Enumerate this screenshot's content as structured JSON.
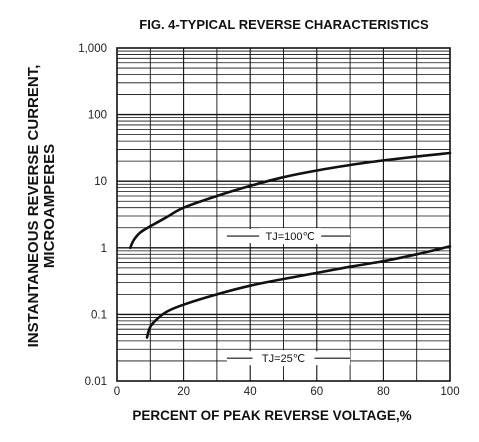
{
  "chart_data": {
    "type": "line",
    "title": "FIG. 4-TYPICAL REVERSE CHARACTERISTICS",
    "xlabel": "PERCENT OF PEAK REVERSE VOLTAGE,%",
    "ylabel": [
      "INSTANTANEOUS REVERSE CURRENT,",
      "MICROAMPERES"
    ],
    "xlim": [
      0,
      100
    ],
    "ylim": [
      0.01,
      1000
    ],
    "yscale": "log",
    "grid": true,
    "x_ticks": [
      0,
      20,
      40,
      60,
      80,
      100
    ],
    "x_tick_labels": [
      "0",
      "20",
      "40",
      "60",
      "80",
      "100"
    ],
    "y_ticks": [
      0.01,
      0.1,
      1,
      10,
      100,
      1000
    ],
    "y_tick_labels": [
      "0.01",
      "0.1",
      "1",
      "10",
      "100",
      "1,000"
    ],
    "series": [
      {
        "name": "TJ=100℃",
        "points": [
          [
            4,
            1.0
          ],
          [
            5,
            1.3
          ],
          [
            7,
            1.7
          ],
          [
            10,
            2.1
          ],
          [
            15,
            2.9
          ],
          [
            20,
            4.0
          ],
          [
            30,
            6.0
          ],
          [
            40,
            8.5
          ],
          [
            50,
            11.5
          ],
          [
            60,
            14.5
          ],
          [
            70,
            17.5
          ],
          [
            80,
            20.5
          ],
          [
            90,
            23.5
          ],
          [
            100,
            26.5
          ]
        ]
      },
      {
        "name": "TJ=25℃",
        "points": [
          [
            9,
            0.045
          ],
          [
            10,
            0.065
          ],
          [
            12,
            0.085
          ],
          [
            15,
            0.11
          ],
          [
            20,
            0.14
          ],
          [
            30,
            0.2
          ],
          [
            40,
            0.27
          ],
          [
            50,
            0.34
          ],
          [
            60,
            0.42
          ],
          [
            70,
            0.52
          ],
          [
            80,
            0.63
          ],
          [
            90,
            0.8
          ],
          [
            100,
            1.05
          ]
        ]
      }
    ],
    "annotations": [
      {
        "text": "TJ=100℃",
        "x": 52,
        "y": 1.5,
        "line_x": [
          33,
          70
        ]
      },
      {
        "text": "TJ=25℃",
        "x": 50,
        "y": 0.022,
        "line_x": [
          33,
          70
        ]
      }
    ]
  }
}
